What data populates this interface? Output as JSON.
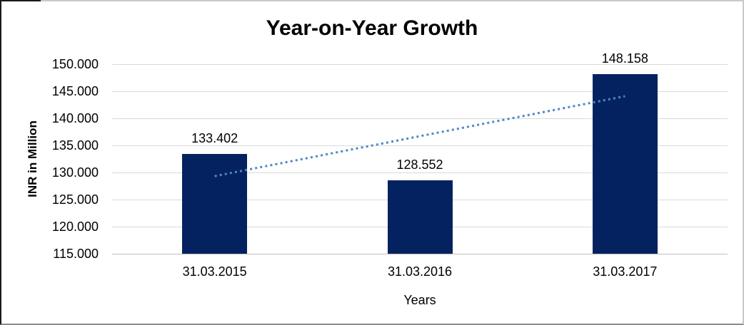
{
  "chart_data": {
    "type": "bar",
    "title": "Year-on-Year Growth",
    "xlabel": "Years",
    "ylabel": "INR in Million",
    "categories": [
      "31.03.2015",
      "31.03.2016",
      "31.03.2017"
    ],
    "values": [
      133402,
      128552,
      148158
    ],
    "value_labels": [
      "133.402",
      "128.552",
      "148.158"
    ],
    "ylim": [
      115000,
      150000
    ],
    "ytick_step": 5000,
    "ytick_labels": [
      "150.000",
      "145.000",
      "140.000",
      "135.000",
      "130.000",
      "125.000",
      "120.000",
      "115.000"
    ],
    "grid": true,
    "legend": "none",
    "bar_color": "#052260",
    "gridline_color": "#d9d9d9",
    "axisline_color": "#bfbfbf",
    "trendline": {
      "type": "linear",
      "style": "dotted",
      "color": "#4e87c7",
      "start_value": 129326,
      "end_value": 144082
    }
  }
}
